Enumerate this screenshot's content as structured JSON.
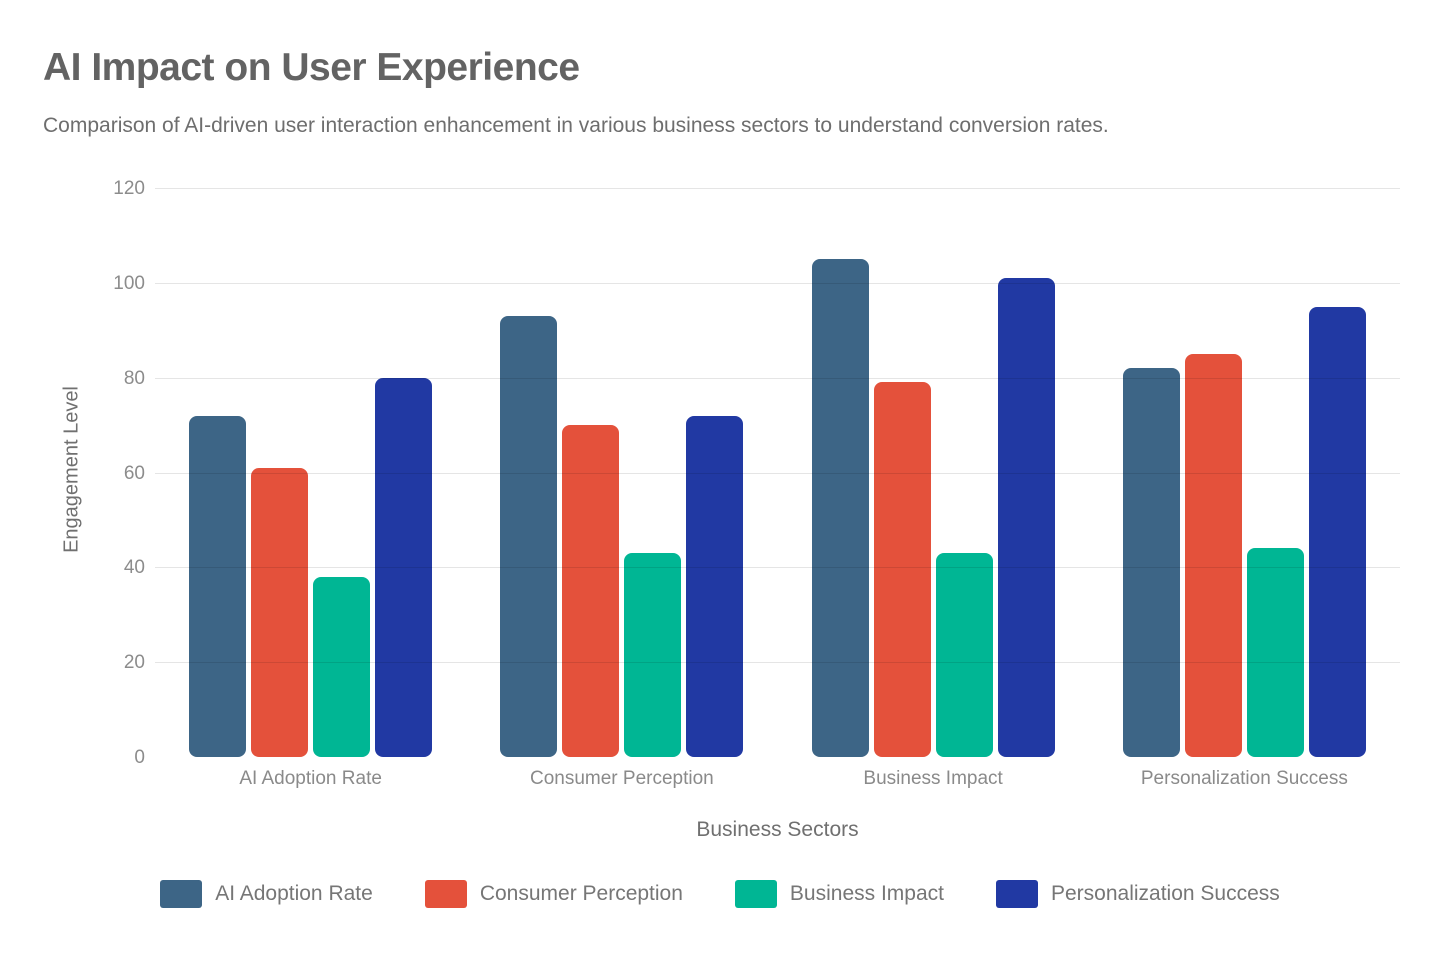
{
  "page": {
    "title": "AI Impact on User Experience",
    "subtitle": "Comparison of AI-driven user interaction enhancement in various business sectors to understand conversion rates."
  },
  "chart_data": {
    "type": "bar",
    "title": "AI Impact on User Experience",
    "subtitle": "Comparison of AI-driven user interaction enhancement in various business sectors to understand conversion rates.",
    "xlabel": "Business Sectors",
    "ylabel": "Engagement Level",
    "categories": [
      "AI Adoption Rate",
      "Consumer Perception",
      "Business Impact",
      "Personalization Success"
    ],
    "series": [
      {
        "name": "AI Adoption Rate",
        "color": "#3d6586",
        "values": [
          72,
          93,
          105,
          82
        ]
      },
      {
        "name": "Consumer Perception",
        "color": "#e4513b",
        "values": [
          61,
          70,
          79,
          85
        ]
      },
      {
        "name": "Business Impact",
        "color": "#00b694",
        "values": [
          38,
          43,
          43,
          44
        ]
      },
      {
        "name": "Personalization Success",
        "color": "#2139a3",
        "values": [
          80,
          72,
          101,
          95
        ]
      }
    ],
    "ylim": [
      0,
      120
    ],
    "yticks": [
      0,
      20,
      40,
      60,
      80,
      100,
      120
    ],
    "grid": "horizontal gridlines, faint, overlaid on bars",
    "legend_position": "bottom"
  }
}
